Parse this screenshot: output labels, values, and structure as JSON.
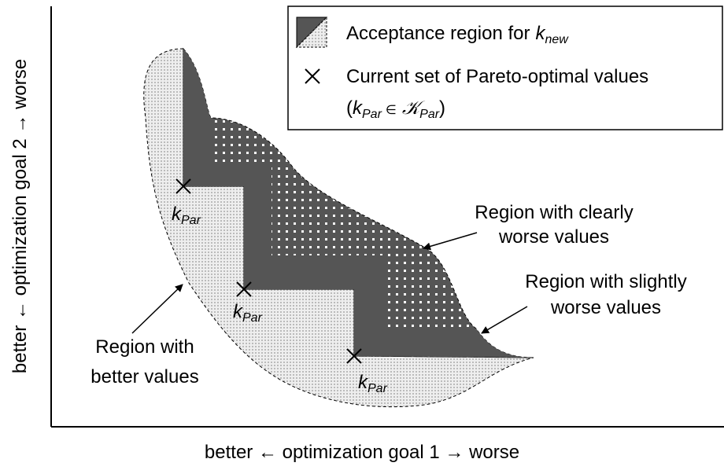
{
  "axes": {
    "x_label": "better ← optimization goal 1 → worse",
    "y_label": "better ← optimization goal 2 → worse"
  },
  "legend": {
    "acceptance": {
      "text": "Acceptance region for",
      "symbol": "k",
      "subscript": "new"
    },
    "pareto": {
      "line1": "Current set of Pareto-optimal values",
      "line2": {
        "open": "(",
        "symbol": "k",
        "subscript": "Par",
        "relation": "∈",
        "set": "𝒦",
        "set_subscript": "Par",
        "close": ")"
      }
    }
  },
  "points": [
    {
      "symbol": "k",
      "subscript": "Par"
    },
    {
      "symbol": "k",
      "subscript": "Par"
    },
    {
      "symbol": "k",
      "subscript": "Par"
    }
  ],
  "annotations": [
    {
      "lines": [
        "Region with clearly",
        "worse values"
      ]
    },
    {
      "lines": [
        "Region with slightly",
        "worse values"
      ]
    },
    {
      "lines": [
        "Region with",
        "better values"
      ]
    }
  ]
}
